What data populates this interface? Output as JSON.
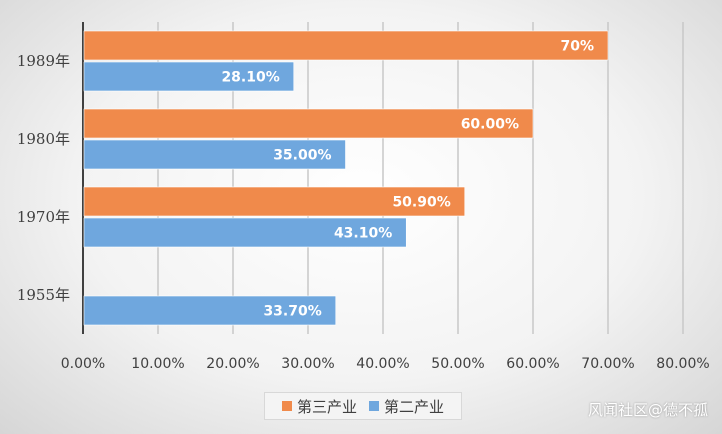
{
  "chart_data": {
    "type": "bar",
    "orientation": "horizontal",
    "categories": [
      "1989年",
      "1980年",
      "1970年",
      "1955年"
    ],
    "series": [
      {
        "name": "第三产业",
        "color": "#f08a4b",
        "values": [
          70,
          60,
          50.9,
          null
        ],
        "labels": [
          "70%",
          "60.00%",
          "50.90%",
          ""
        ]
      },
      {
        "name": "第二产业",
        "color": "#6fa7de",
        "values": [
          28.1,
          35,
          43.1,
          33.7
        ],
        "labels": [
          "28.10%",
          "35.00%",
          "43.10%",
          "33.70%"
        ]
      }
    ],
    "xlim": [
      0,
      80
    ],
    "xticks": [
      0,
      10,
      20,
      30,
      40,
      50,
      60,
      70,
      80
    ],
    "xtick_labels": [
      "0.00%",
      "10.00%",
      "20.00%",
      "30.00%",
      "40.00%",
      "50.00%",
      "60.00%",
      "70.00%",
      "80.00%"
    ],
    "grid": true,
    "legend_position": "bottom"
  },
  "legend": {
    "item1": "第三产业",
    "item2": "第二产业"
  },
  "watermark": "风闻社区@德不孤"
}
